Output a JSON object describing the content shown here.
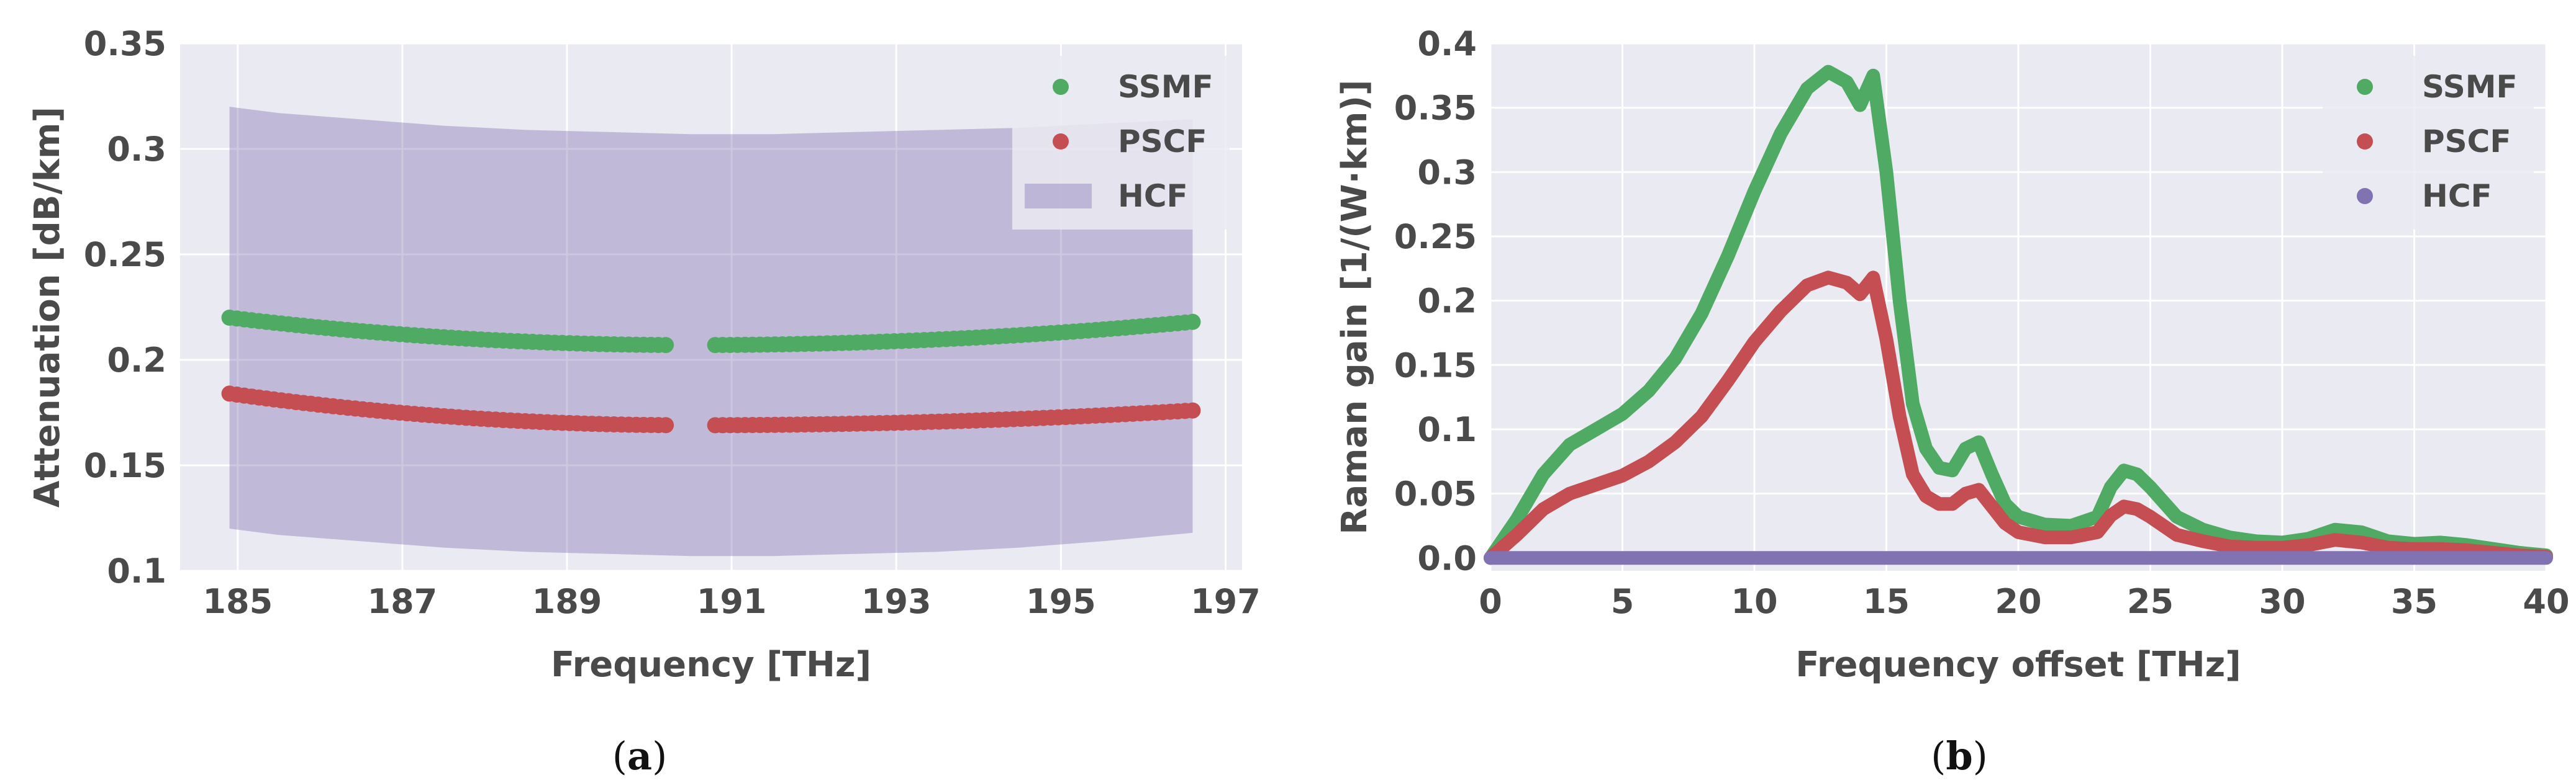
{
  "colors": {
    "ssmf": "#4faa63",
    "pscf": "#c44e52",
    "hcf": "#8172b2",
    "plot_bg": "#eaeaf2",
    "grid": "#ffffff"
  },
  "chart_data": [
    {
      "type": "scatter",
      "caption": {
        "open": "(",
        "letter": "a",
        "close": ")"
      },
      "xlabel": "Frequency [THz]",
      "ylabel": "Attenuation [dB/km]",
      "xlim": [
        184.3,
        197.2
      ],
      "ylim": [
        0.1,
        0.35
      ],
      "xticks": [
        185,
        187,
        189,
        191,
        193,
        195,
        197
      ],
      "xtick_labels": [
        "185",
        "187",
        "189",
        "191",
        "193",
        "195",
        "197"
      ],
      "yticks": [
        0.1,
        0.15,
        0.2,
        0.25,
        0.3,
        0.35
      ],
      "ytick_labels": [
        "0.1",
        "0.15",
        "0.2",
        "0.25",
        "0.3",
        "0.35"
      ],
      "grid": true,
      "legend": "top-right",
      "series": [
        {
          "name": "SSMF",
          "kind": "points",
          "segments": [
            {
              "x_start": 184.9,
              "x_end": 190.2,
              "points": 60
            },
            {
              "x_start": 190.8,
              "x_end": 196.6,
              "points": 65
            }
          ],
          "curve": {
            "vertex_x": 190.5,
            "vertex_y": 0.207,
            "left_y": 0.22,
            "right_y": 0.218
          }
        },
        {
          "name": "PSCF",
          "kind": "points",
          "segments": [
            {
              "x_start": 184.9,
              "x_end": 190.2,
              "points": 60
            },
            {
              "x_start": 190.8,
              "x_end": 196.6,
              "points": 65
            }
          ],
          "curve": {
            "vertex_x": 190.5,
            "vertex_y": 0.169,
            "left_y": 0.184,
            "right_y": 0.176
          }
        },
        {
          "name": "HCF",
          "kind": "band",
          "x": [
            184.9,
            185.5,
            186.5,
            187.5,
            188.5,
            189.5,
            190.5,
            191.5,
            192.5,
            193.5,
            194.5,
            195.5,
            196.6
          ],
          "upper": [
            0.32,
            0.317,
            0.314,
            0.311,
            0.309,
            0.308,
            0.307,
            0.307,
            0.308,
            0.309,
            0.31,
            0.312,
            0.314
          ],
          "lower": [
            0.12,
            0.117,
            0.114,
            0.111,
            0.109,
            0.108,
            0.107,
            0.107,
            0.108,
            0.109,
            0.111,
            0.114,
            0.118
          ]
        }
      ]
    },
    {
      "type": "line",
      "caption": {
        "open": "(",
        "letter": "b",
        "close": ")"
      },
      "xlabel": "Frequency offset [THz]",
      "ylabel": "Raman gain [1/(W·km)]",
      "xlim": [
        0,
        40
      ],
      "ylim": [
        -0.01,
        0.4
      ],
      "xticks": [
        0,
        5,
        10,
        15,
        20,
        25,
        30,
        35,
        40
      ],
      "xtick_labels": [
        "0",
        "5",
        "10",
        "15",
        "20",
        "25",
        "30",
        "35",
        "40"
      ],
      "yticks": [
        0,
        0.05,
        0.1,
        0.15,
        0.2,
        0.25,
        0.3,
        0.35,
        0.4
      ],
      "ytick_labels": [
        "0.0",
        "0.05",
        "0.1",
        "0.15",
        "0.2",
        "0.25",
        "0.3",
        "0.35",
        "0.4"
      ],
      "grid": true,
      "legend": "top-right",
      "series": [
        {
          "name": "SSMF",
          "x": [
            0,
            1,
            2,
            3,
            4,
            5,
            6,
            7,
            8,
            9,
            10,
            11,
            12,
            12.8,
            13.5,
            14,
            14.5,
            15,
            15.5,
            16,
            16.5,
            17,
            17.5,
            18,
            18.5,
            19,
            19.5,
            20,
            21,
            22,
            23,
            23.5,
            24,
            24.5,
            25,
            26,
            27,
            28,
            29,
            30,
            31,
            32,
            33,
            34,
            35,
            36,
            37,
            38,
            39,
            40
          ],
          "y": [
            0.0,
            0.03,
            0.065,
            0.088,
            0.1,
            0.112,
            0.13,
            0.155,
            0.19,
            0.235,
            0.285,
            0.33,
            0.365,
            0.378,
            0.37,
            0.352,
            0.375,
            0.3,
            0.2,
            0.12,
            0.085,
            0.07,
            0.068,
            0.085,
            0.09,
            0.065,
            0.042,
            0.032,
            0.026,
            0.025,
            0.032,
            0.055,
            0.068,
            0.065,
            0.055,
            0.032,
            0.022,
            0.016,
            0.013,
            0.012,
            0.015,
            0.022,
            0.02,
            0.013,
            0.011,
            0.012,
            0.01,
            0.007,
            0.004,
            0.002
          ]
        },
        {
          "name": "PSCF",
          "x": [
            0,
            1,
            2,
            3,
            4,
            5,
            6,
            7,
            8,
            9,
            10,
            11,
            12,
            12.8,
            13.5,
            14,
            14.5,
            15,
            15.5,
            16,
            16.5,
            17,
            17.5,
            18,
            18.5,
            19,
            19.5,
            20,
            21,
            22,
            23,
            23.5,
            24,
            24.5,
            25,
            26,
            27,
            28,
            29,
            30,
            31,
            32,
            33,
            34,
            35,
            36,
            37,
            38,
            39,
            40
          ],
          "y": [
            0.0,
            0.018,
            0.038,
            0.05,
            0.057,
            0.064,
            0.075,
            0.09,
            0.11,
            0.138,
            0.168,
            0.192,
            0.212,
            0.218,
            0.214,
            0.205,
            0.218,
            0.17,
            0.11,
            0.065,
            0.048,
            0.042,
            0.042,
            0.05,
            0.053,
            0.04,
            0.027,
            0.02,
            0.016,
            0.016,
            0.02,
            0.033,
            0.04,
            0.038,
            0.032,
            0.018,
            0.013,
            0.009,
            0.008,
            0.008,
            0.01,
            0.014,
            0.012,
            0.008,
            0.007,
            0.007,
            0.006,
            0.004,
            0.002,
            0.001
          ]
        },
        {
          "name": "HCF",
          "x": [
            0,
            40
          ],
          "y": [
            0.0,
            0.0
          ]
        }
      ]
    }
  ]
}
